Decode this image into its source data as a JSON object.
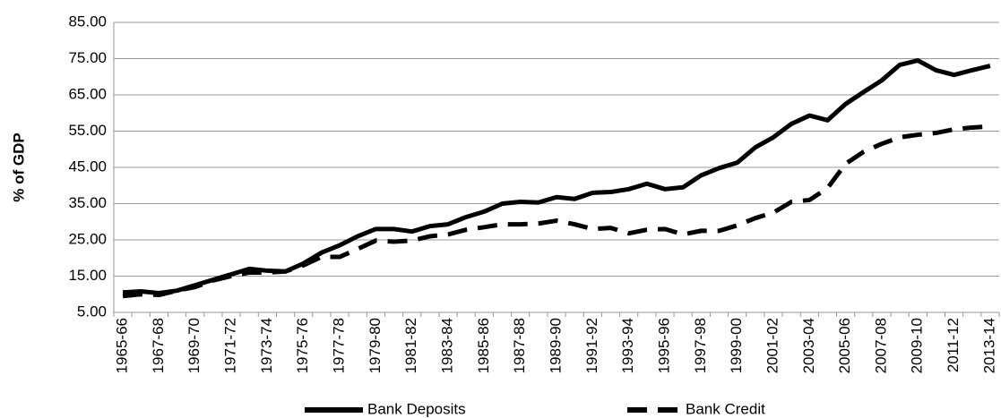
{
  "chart_data": {
    "type": "line",
    "y_label": "% of GDP",
    "categories": [
      "1965-66",
      null,
      "1967-68",
      null,
      "1969-70",
      null,
      "1971-72",
      null,
      "1973-74",
      null,
      "1975-76",
      null,
      "1977-78",
      null,
      "1979-80",
      null,
      "1981-82",
      null,
      "1983-84",
      null,
      "1985-86",
      null,
      "1987-88",
      null,
      "1989-90",
      null,
      "1991-92",
      null,
      "1993-94",
      null,
      "1995-96",
      null,
      "1997-98",
      null,
      "1999-00",
      null,
      "2001-02",
      null,
      "2003-04",
      null,
      "2005-06",
      null,
      "2007-08",
      null,
      "2009-10",
      null,
      "2011-12",
      null,
      "2013-14"
    ],
    "series": [
      {
        "name": "Bank Deposits",
        "color": "#000000",
        "style": "solid",
        "values": [
          10.5,
          10.8,
          10.3,
          11,
          12.5,
          14,
          15.5,
          17,
          16.5,
          16.3,
          18.5,
          21.5,
          23.5,
          26,
          28,
          28,
          27.3,
          28.8,
          29.3,
          31.3,
          32.8,
          35,
          35.5,
          35.3,
          36.8,
          36.3,
          38,
          38.2,
          39,
          40.5,
          39,
          39.5,
          42.8,
          44.8,
          46.3,
          50.5,
          53.3,
          57,
          59.3,
          58,
          62.5,
          65.8,
          69,
          73.3,
          74.5,
          71.8,
          70.5,
          71.8,
          73
        ]
      },
      {
        "name": "Bank Credit",
        "color": "#000000",
        "style": "dashed",
        "values": [
          9.5,
          10,
          9.8,
          11,
          12,
          13.8,
          15,
          16,
          16,
          16.3,
          18,
          20.3,
          20.3,
          22.5,
          24.8,
          24.5,
          24.8,
          26,
          26.5,
          27.8,
          28.5,
          29.3,
          29.3,
          29.5,
          30.3,
          29.3,
          28,
          28.3,
          26.8,
          27.8,
          28,
          26.5,
          27.5,
          27.5,
          29,
          31,
          32.5,
          35.5,
          36,
          39.3,
          46,
          49.3,
          51.5,
          53.3,
          54,
          54.5,
          55.5,
          56,
          56.3
        ]
      }
    ],
    "ylim": [
      5,
      85
    ],
    "yticks": [
      {
        "value": 5,
        "label": "5.00"
      },
      {
        "value": 15,
        "label": "15.00"
      },
      {
        "value": 25,
        "label": "25.00"
      },
      {
        "value": 35,
        "label": "35.00"
      },
      {
        "value": 45,
        "label": "45.00"
      },
      {
        "value": 55,
        "label": "55.00"
      },
      {
        "value": 65,
        "label": "65.00"
      },
      {
        "value": 75,
        "label": "75.00"
      },
      {
        "value": 85,
        "label": "85.00"
      }
    ],
    "grid": true,
    "legend": "bottom"
  }
}
